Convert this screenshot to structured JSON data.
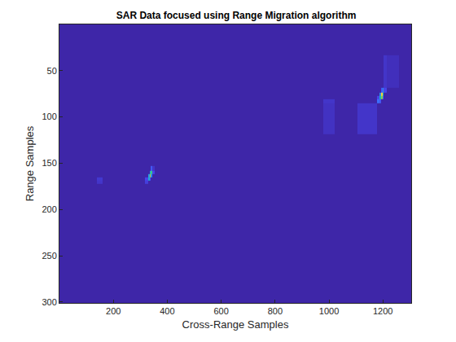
{
  "chart_data": {
    "type": "heatmap",
    "title": "SAR Data focused using Range Migration algorithm",
    "xlabel": "Cross-Range Samples",
    "ylabel": "Range Samples",
    "x": [
      1,
      130,
      150,
      170,
      310,
      325,
      332,
      336,
      340,
      347,
      360,
      960,
      1000,
      1040,
      1170,
      1185,
      1192,
      1196,
      1200,
      1207,
      1220,
      1300
    ],
    "y": [
      1,
      65,
      72,
      76,
      79,
      83,
      88,
      150,
      156,
      160,
      163,
      167,
      170,
      175,
      300
    ],
    "z": [
      [
        0,
        0,
        0,
        0,
        0,
        0,
        0,
        0,
        0,
        0,
        0,
        0,
        0,
        0,
        0,
        0,
        0,
        0,
        0,
        0,
        0,
        0
      ],
      [
        0,
        0,
        0,
        0,
        0,
        0,
        0,
        0,
        0,
        0,
        0,
        0,
        0,
        0,
        0,
        0,
        0,
        0,
        0,
        0.05,
        0.03,
        0
      ],
      [
        0,
        0,
        0,
        0,
        0,
        0,
        0,
        0,
        0,
        0,
        0,
        0,
        0,
        0,
        0,
        0,
        0,
        0.15,
        0.3,
        0.1,
        0,
        0
      ],
      [
        0,
        0,
        0,
        0,
        0,
        0,
        0,
        0,
        0,
        0,
        0,
        0,
        0,
        0,
        0,
        0,
        0.3,
        0.9,
        0.5,
        0,
        0,
        0
      ],
      [
        0,
        0,
        0,
        0,
        0,
        0,
        0,
        0,
        0,
        0,
        0,
        0,
        0,
        0,
        0,
        0.1,
        0.5,
        0.7,
        0.2,
        0,
        0,
        0
      ],
      [
        0,
        0,
        0,
        0,
        0,
        0,
        0,
        0,
        0,
        0,
        0,
        0,
        0.05,
        0,
        0,
        0.2,
        0.15,
        0,
        0,
        0,
        0,
        0
      ],
      [
        0,
        0,
        0,
        0,
        0,
        0,
        0,
        0,
        0,
        0,
        0,
        0,
        0.04,
        0,
        0.05,
        0,
        0,
        0,
        0,
        0,
        0,
        0
      ],
      [
        0,
        0,
        0,
        0,
        0,
        0,
        0,
        0,
        0,
        0,
        0,
        0,
        0,
        0,
        0,
        0,
        0,
        0,
        0,
        0,
        0,
        0
      ],
      [
        0,
        0,
        0,
        0,
        0,
        0,
        0,
        0,
        0.15,
        0.05,
        0,
        0,
        0,
        0,
        0,
        0,
        0,
        0,
        0,
        0,
        0,
        0
      ],
      [
        0,
        0,
        0,
        0,
        0,
        0,
        0,
        0.4,
        0.6,
        0.1,
        0,
        0,
        0,
        0,
        0,
        0,
        0,
        0,
        0,
        0,
        0,
        0
      ],
      [
        0,
        0,
        0,
        0,
        0,
        0,
        0.35,
        0.8,
        0.3,
        0,
        0,
        0,
        0,
        0,
        0,
        0,
        0,
        0,
        0,
        0,
        0,
        0
      ],
      [
        0,
        0,
        0.06,
        0,
        0,
        0.1,
        0.4,
        0.15,
        0,
        0,
        0,
        0,
        0,
        0,
        0,
        0,
        0,
        0,
        0,
        0,
        0,
        0
      ],
      [
        0,
        0,
        0.05,
        0,
        0,
        0.08,
        0,
        0,
        0,
        0,
        0,
        0,
        0,
        0,
        0,
        0,
        0,
        0,
        0,
        0,
        0,
        0
      ],
      [
        0,
        0,
        0,
        0,
        0,
        0,
        0,
        0,
        0,
        0,
        0,
        0,
        0,
        0,
        0,
        0,
        0,
        0,
        0,
        0,
        0,
        0
      ],
      [
        0,
        0,
        0,
        0,
        0,
        0,
        0,
        0,
        0,
        0,
        0,
        0,
        0,
        0,
        0,
        0,
        0,
        0,
        0,
        0,
        0,
        0
      ]
    ],
    "zlim": [
      0,
      1
    ],
    "xlim": [
      0,
      1305
    ],
    "ylim": [
      301,
      0
    ],
    "xticks": [
      200,
      400,
      600,
      800,
      1000,
      1200
    ],
    "yticks": [
      50,
      100,
      150,
      200,
      250,
      300
    ]
  }
}
